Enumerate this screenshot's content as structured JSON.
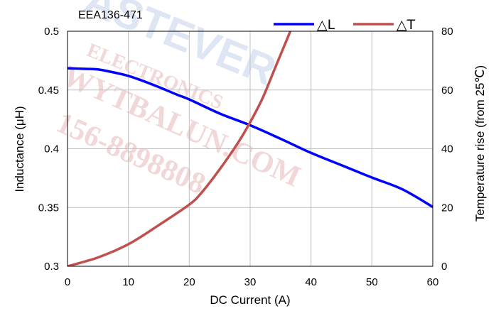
{
  "chart_data": {
    "type": "line",
    "title": "EEA136-471",
    "xlabel": "DC Current (A)",
    "ylabel": "Inductance (μH)",
    "y2label": "Temperature rise (from 25℃)",
    "xlim": [
      0,
      60
    ],
    "ylim": [
      0.3,
      0.5
    ],
    "y2lim": [
      0,
      80
    ],
    "x_ticks": [
      "0",
      "10",
      "20",
      "30",
      "40",
      "50",
      "60"
    ],
    "y_ticks": [
      "0.3",
      "0.35",
      "0.4",
      "0.45",
      "0.5"
    ],
    "y2_ticks": [
      "0",
      "20",
      "40",
      "60",
      "80"
    ],
    "grid": true,
    "legend_position": "top-right",
    "series": [
      {
        "name": "△L",
        "axis": "left",
        "color": "#0000ff",
        "x": [
          0,
          3,
          5,
          8,
          10,
          12,
          15,
          18,
          20,
          25,
          30,
          35,
          40,
          45,
          50,
          55,
          60
        ],
        "values": [
          0.4685,
          0.468,
          0.4675,
          0.4645,
          0.462,
          0.4585,
          0.4525,
          0.446,
          0.442,
          0.43,
          0.42,
          0.4085,
          0.3965,
          0.386,
          0.3755,
          0.3655,
          0.3505
        ]
      },
      {
        "name": "△T",
        "axis": "right",
        "color": "#c0504d",
        "x": [
          0,
          5,
          10,
          15,
          20,
          22,
          25,
          28,
          30,
          32,
          34,
          36,
          36.8
        ],
        "values": [
          0,
          3,
          7.5,
          14,
          21,
          25,
          33,
          42,
          49,
          57,
          67,
          77,
          81
        ]
      }
    ]
  },
  "watermark": {
    "line1": "ASTEVER",
    "line2": "ELECTRONICS",
    "line3": "WYTBALUN.COM",
    "line4": "156-8898808"
  }
}
